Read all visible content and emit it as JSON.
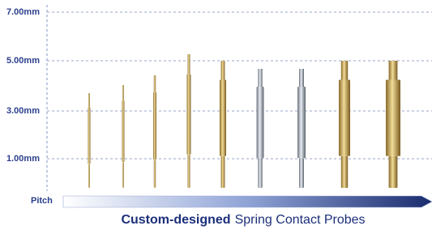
{
  "axis": {
    "ticks": [
      "7.00mm",
      "5.00mm",
      "3.00mm",
      "1.00mm"
    ],
    "x_label": "Pitch"
  },
  "caption": {
    "bold": "Custom-designed",
    "rest": "Spring Contact Probes"
  }
}
